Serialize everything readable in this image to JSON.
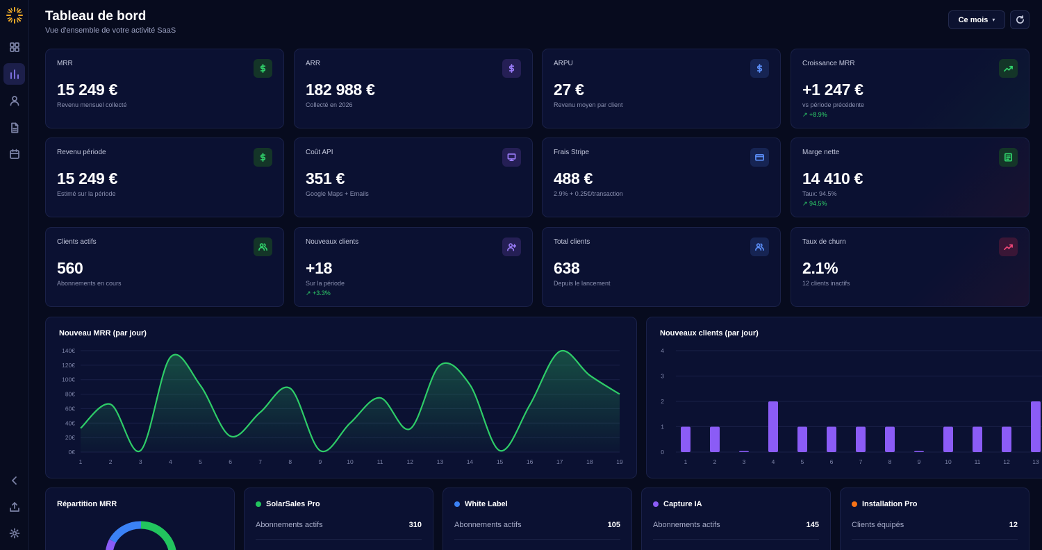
{
  "header": {
    "title": "Tableau de bord",
    "subtitle": "Vue d'ensemble de votre activité SaaS",
    "period_label": "Ce mois"
  },
  "sidebar": {
    "items": [
      {
        "icon": "grid-icon"
      },
      {
        "icon": "bar-chart-icon",
        "active": true
      },
      {
        "icon": "user-icon"
      },
      {
        "icon": "document-icon"
      },
      {
        "icon": "calendar-icon"
      }
    ],
    "bottom": [
      {
        "icon": "chevron-left-icon"
      },
      {
        "icon": "upload-icon"
      },
      {
        "icon": "gear-icon"
      }
    ]
  },
  "kpis": [
    {
      "label": "MRR",
      "value": "15 249 €",
      "sub": "Revenu mensuel collecté",
      "icon": "dollar-icon",
      "color": "green"
    },
    {
      "label": "ARR",
      "value": "182 988 €",
      "sub": "Collecté en 2026",
      "icon": "dollar-icon",
      "color": "purple"
    },
    {
      "label": "ARPU",
      "value": "27 €",
      "sub": "Revenu moyen par client",
      "icon": "dollar-icon",
      "color": "blue"
    },
    {
      "label": "Croissance MRR",
      "value": "+1 247 €",
      "sub": "vs période précédente",
      "trend": "↗ +8.9%",
      "icon": "trend-up-icon",
      "color": "green"
    },
    {
      "label": "Revenu période",
      "value": "15 249 €",
      "sub": "Estimé sur la période",
      "icon": "dollar-icon",
      "color": "green"
    },
    {
      "label": "Coût API",
      "value": "351 €",
      "sub": "Google Maps + Emails",
      "icon": "monitor-icon",
      "color": "purple"
    },
    {
      "label": "Frais Stripe",
      "value": "488 €",
      "sub": "2.9% + 0.25€/transaction",
      "icon": "credit-card-icon",
      "color": "blue"
    },
    {
      "label": "Marge nette",
      "value": "14 410 €",
      "sub": "Taux: 94.5%",
      "trend": "↗ 94.5%",
      "icon": "receipt-icon",
      "color": "green"
    },
    {
      "label": "Clients actifs",
      "value": "560",
      "sub": "Abonnements en cours",
      "icon": "users-icon",
      "color": "green"
    },
    {
      "label": "Nouveaux clients",
      "value": "+18",
      "sub": "Sur la période",
      "trend": "↗ +3.3%",
      "icon": "user-plus-icon",
      "color": "purple"
    },
    {
      "label": "Total clients",
      "value": "638",
      "sub": "Depuis le lancement",
      "icon": "users-icon",
      "color": "blue"
    },
    {
      "label": "Taux de churn",
      "value": "2.1%",
      "sub": "12 clients inactifs",
      "icon": "trend-up-icon",
      "color": "red"
    }
  ],
  "chart_data": [
    {
      "type": "area",
      "title": "Nouveau MRR (par jour)",
      "x": [
        1,
        2,
        3,
        4,
        5,
        6,
        7,
        8,
        9,
        10,
        11,
        12,
        13,
        14,
        15,
        16,
        17,
        18,
        19
      ],
      "values": [
        33,
        66,
        2,
        131,
        92,
        22,
        55,
        88,
        2,
        40,
        75,
        32,
        120,
        93,
        2,
        65,
        139,
        106,
        80
      ],
      "yticks": [
        "0€",
        "20€",
        "40€",
        "60€",
        "80€",
        "100€",
        "120€",
        "140€"
      ],
      "ylim": [
        0,
        140
      ],
      "color": "#2ecc68"
    },
    {
      "type": "bar",
      "title": "Nouveaux clients (par jour)",
      "categories": [
        1,
        2,
        3,
        4,
        5,
        6,
        7,
        8,
        9,
        10,
        11,
        12,
        13
      ],
      "values": [
        1,
        1,
        0,
        2,
        1,
        1,
        1,
        1,
        0,
        1,
        1,
        1,
        2
      ],
      "yticks": [
        "0",
        "1",
        "2",
        "3",
        "4"
      ],
      "ylim": [
        0,
        4
      ],
      "color": "#8b5cf6"
    }
  ],
  "mrr_split": {
    "title": "Répartition MRR"
  },
  "products": [
    {
      "name": "SolarSales Pro",
      "color": "#22c55e",
      "row_label": "Abonnements actifs",
      "row_value": "310"
    },
    {
      "name": "White Label",
      "color": "#3b82f6",
      "row_label": "Abonnements actifs",
      "row_value": "105"
    },
    {
      "name": "Capture IA",
      "color": "#8b5cf6",
      "row_label": "Abonnements actifs",
      "row_value": "145"
    },
    {
      "name": "Installation Pro",
      "color": "#f97316",
      "row_label": "Clients équipés",
      "row_value": "12"
    }
  ]
}
